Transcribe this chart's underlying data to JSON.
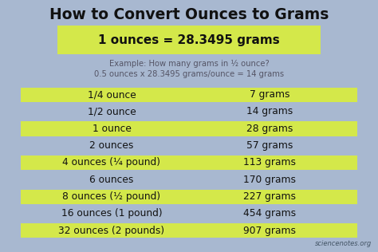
{
  "title": "How to Convert Ounces to Grams",
  "highlight_formula": "1 ounces = 28.3495 grams",
  "example_line1": "Example: How many grams in ½ ounce?",
  "example_line2": "0.5 ounces x 28.3495 grams/ounce = 14 grams",
  "table_rows": [
    {
      "ounce": "1/4 ounce",
      "gram": "7 grams",
      "highlight": true
    },
    {
      "ounce": "1/2 ounce",
      "gram": "14 grams",
      "highlight": false
    },
    {
      "ounce": "1 ounce",
      "gram": "28 grams",
      "highlight": true
    },
    {
      "ounce": "2 ounces",
      "gram": "57 grams",
      "highlight": false
    },
    {
      "ounce": "4 ounces (¼ pound)",
      "gram": "113 grams",
      "highlight": true
    },
    {
      "ounce": "6 ounces",
      "gram": "170 grams",
      "highlight": false
    },
    {
      "ounce": "8 ounces (½ pound)",
      "gram": "227 grams",
      "highlight": true
    },
    {
      "ounce": "16 ounces (1 pound)",
      "gram": "454 grams",
      "highlight": false
    },
    {
      "ounce": "32 ounces (2 pounds)",
      "gram": "907 grams",
      "highlight": true
    }
  ],
  "bg_color": "#a8b8d0",
  "highlight_color": "#d4e84a",
  "title_color": "#111111",
  "text_color": "#111111",
  "example_color": "#555566",
  "watermark": "sciencenotes.org",
  "title_fontsize": 13.5,
  "formula_fontsize": 11,
  "example_fontsize": 7.2,
  "table_fontsize": 8.8,
  "watermark_fontsize": 6.0
}
